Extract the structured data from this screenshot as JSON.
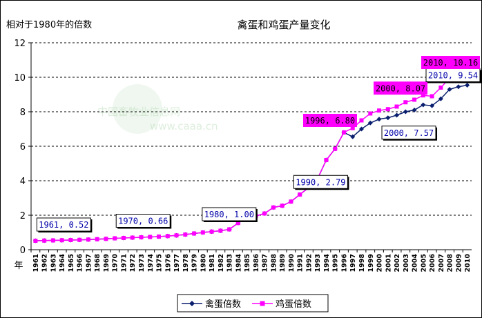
{
  "chart_data": {
    "type": "line",
    "title": "禽蛋和鸡蛋产量变化",
    "ylabel": "相对于1980年的倍数",
    "xlabel": "年",
    "ylim": [
      0,
      12
    ],
    "yticks": [
      "0",
      "2",
      "4",
      "6",
      "8",
      "10",
      "12"
    ],
    "grid": "horizontal-dashed",
    "legend_position": "bottom",
    "x": [
      "1961",
      "1962",
      "1963",
      "1964",
      "1965",
      "1966",
      "1967",
      "1968",
      "1969",
      "1970",
      "1971",
      "1972",
      "1973",
      "1974",
      "1975",
      "1976",
      "1977",
      "1978",
      "1979",
      "1980",
      "1981",
      "1982",
      "1983",
      "1984",
      "1985",
      "1986",
      "1987",
      "1988",
      "1989",
      "1990",
      "1991",
      "1992",
      "1993",
      "1994",
      "1995",
      "1996",
      "1997",
      "1998",
      "1999",
      "2000",
      "2001",
      "2002",
      "2003",
      "2004",
      "2005",
      "2006",
      "2007",
      "2008",
      "2009",
      "2010"
    ],
    "series": [
      {
        "name": "禽蛋倍数",
        "color": "#0a1f6e",
        "marker": "diamond",
        "values": [
          0.52,
          0.53,
          0.54,
          0.55,
          0.56,
          0.57,
          0.59,
          0.61,
          0.63,
          0.66,
          0.68,
          0.7,
          0.72,
          0.74,
          0.76,
          0.79,
          0.83,
          0.88,
          0.94,
          1.0,
          1.05,
          1.1,
          1.18,
          1.55,
          1.85,
          1.95,
          2.1,
          2.45,
          2.55,
          2.79,
          3.2,
          3.6,
          4.1,
          5.2,
          5.85,
          6.8,
          6.55,
          7.0,
          7.35,
          7.57,
          7.65,
          7.8,
          8.0,
          8.1,
          8.4,
          8.35,
          8.75,
          9.3,
          9.45,
          9.54
        ]
      },
      {
        "name": "鸡蛋倍数",
        "color": "#ff00ff",
        "marker": "square",
        "values": [
          0.52,
          0.53,
          0.54,
          0.55,
          0.56,
          0.57,
          0.59,
          0.61,
          0.63,
          0.66,
          0.68,
          0.7,
          0.72,
          0.74,
          0.76,
          0.79,
          0.83,
          0.88,
          0.94,
          1.0,
          1.05,
          1.1,
          1.18,
          1.55,
          1.85,
          1.95,
          2.1,
          2.45,
          2.55,
          2.79,
          3.2,
          3.6,
          4.1,
          5.2,
          5.85,
          6.8,
          7.05,
          7.5,
          7.9,
          8.07,
          8.15,
          8.3,
          8.55,
          8.7,
          8.95,
          8.9,
          9.4,
          9.95,
          10.1,
          10.16
        ]
      }
    ],
    "annotations": [
      {
        "text": "1961, 0.52",
        "series": 0,
        "x": "1961",
        "style": "blue"
      },
      {
        "text": "1970, 0.66",
        "series": 0,
        "x": "1970",
        "style": "blue"
      },
      {
        "text": "1980, 1.00",
        "series": 0,
        "x": "1980",
        "style": "blue"
      },
      {
        "text": "1990, 2.79",
        "series": 0,
        "x": "1990",
        "style": "blue"
      },
      {
        "text": "1996, 6.80",
        "series": 1,
        "x": "1996",
        "style": "magenta"
      },
      {
        "text": "2000, 7.57",
        "series": 0,
        "x": "2000",
        "style": "blue"
      },
      {
        "text": "2000, 8.07",
        "series": 1,
        "x": "2000",
        "style": "magenta"
      },
      {
        "text": "2010, 9.54",
        "series": 0,
        "x": "2010",
        "style": "blue"
      },
      {
        "text": "2010, 10.16",
        "series": 1,
        "x": "2010",
        "style": "magenta"
      }
    ],
    "watermark": {
      "cn": "中国畜牧业信息网",
      "en": "www.caaa.cn"
    }
  }
}
